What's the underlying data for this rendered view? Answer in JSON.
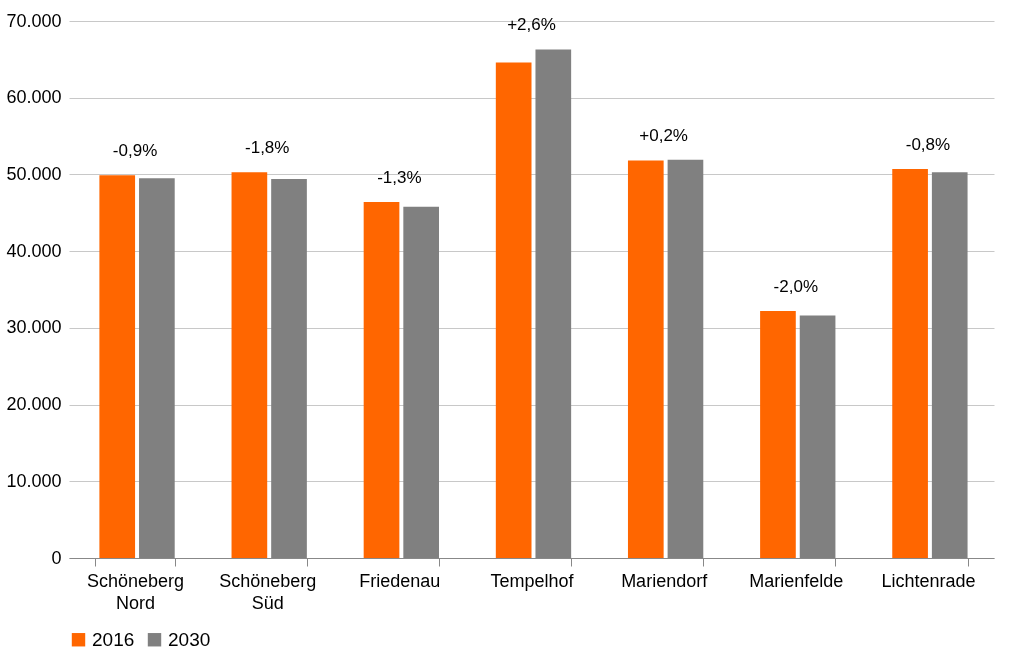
{
  "chart_data": {
    "type": "bar",
    "categories": [
      "Schöneberg Nord",
      "Schöneberg Süd",
      "Friedenau",
      "Tempelhof",
      "Mariendorf",
      "Marienfelde",
      "Lichtenrade"
    ],
    "series": [
      {
        "name": "2016",
        "color": "#ff6600",
        "values": [
          49900,
          50300,
          46400,
          64600,
          51800,
          32200,
          50700
        ]
      },
      {
        "name": "2030",
        "color": "#808080",
        "values": [
          49500,
          49400,
          45800,
          66300,
          51900,
          31600,
          50300
        ]
      }
    ],
    "ylim": [
      0,
      70000
    ],
    "yticks": [
      {
        "value": 0,
        "label": "0"
      },
      {
        "value": 10000,
        "label": "10.000"
      },
      {
        "value": 20000,
        "label": "20.000"
      },
      {
        "value": 30000,
        "label": "30.000"
      },
      {
        "value": 40000,
        "label": "40.000"
      },
      {
        "value": 50000,
        "label": "50.000"
      },
      {
        "value": 60000,
        "label": "60.000"
      },
      {
        "value": 70000,
        "label": "70.000"
      }
    ],
    "annotations": [
      {
        "text": "-0,9%",
        "x": "Schöneberg Nord",
        "y": 49900
      },
      {
        "text": "-1,8%",
        "x": "Schöneberg Süd",
        "y": 50300
      },
      {
        "text": "-1,3%",
        "x": "Friedenau",
        "y": 46400
      },
      {
        "text": "+2,6%",
        "x": "Tempelhof",
        "y": 66300
      },
      {
        "text": "+0,2%",
        "x": "Mariendorf",
        "y": 51900
      },
      {
        "text": "-2,0%",
        "x": "Marienfelde",
        "y": 32200
      },
      {
        "text": "-0,8%",
        "x": "Lichtenrade",
        "y": 50700
      }
    ],
    "grid": "y",
    "legend": "bottom"
  }
}
